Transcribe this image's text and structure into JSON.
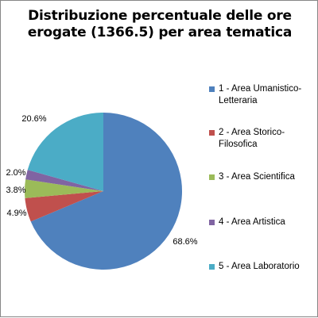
{
  "chart_data": {
    "type": "pie",
    "title": "Distribuzione percentuale delle ore erogate (1366.5) per area tematica",
    "categories": [
      "1 - Area Umanistico-Letteraria",
      "2 - Area Storico-Filosofica",
      "3 - Area Scientifica",
      "4 - Area Artistica",
      "5 - Area Laboratorio"
    ],
    "values": [
      68.6,
      4.9,
      3.8,
      2.0,
      20.6
    ],
    "labels": [
      "68.6%",
      "4.9%",
      "3.8%",
      "2.0%",
      "20.6%"
    ],
    "colors": [
      "#4F81BD",
      "#C0504D",
      "#9BBB59",
      "#8064A2",
      "#4BACC6"
    ],
    "legend_position": "right",
    "start_angle": "top",
    "direction": "clockwise"
  }
}
